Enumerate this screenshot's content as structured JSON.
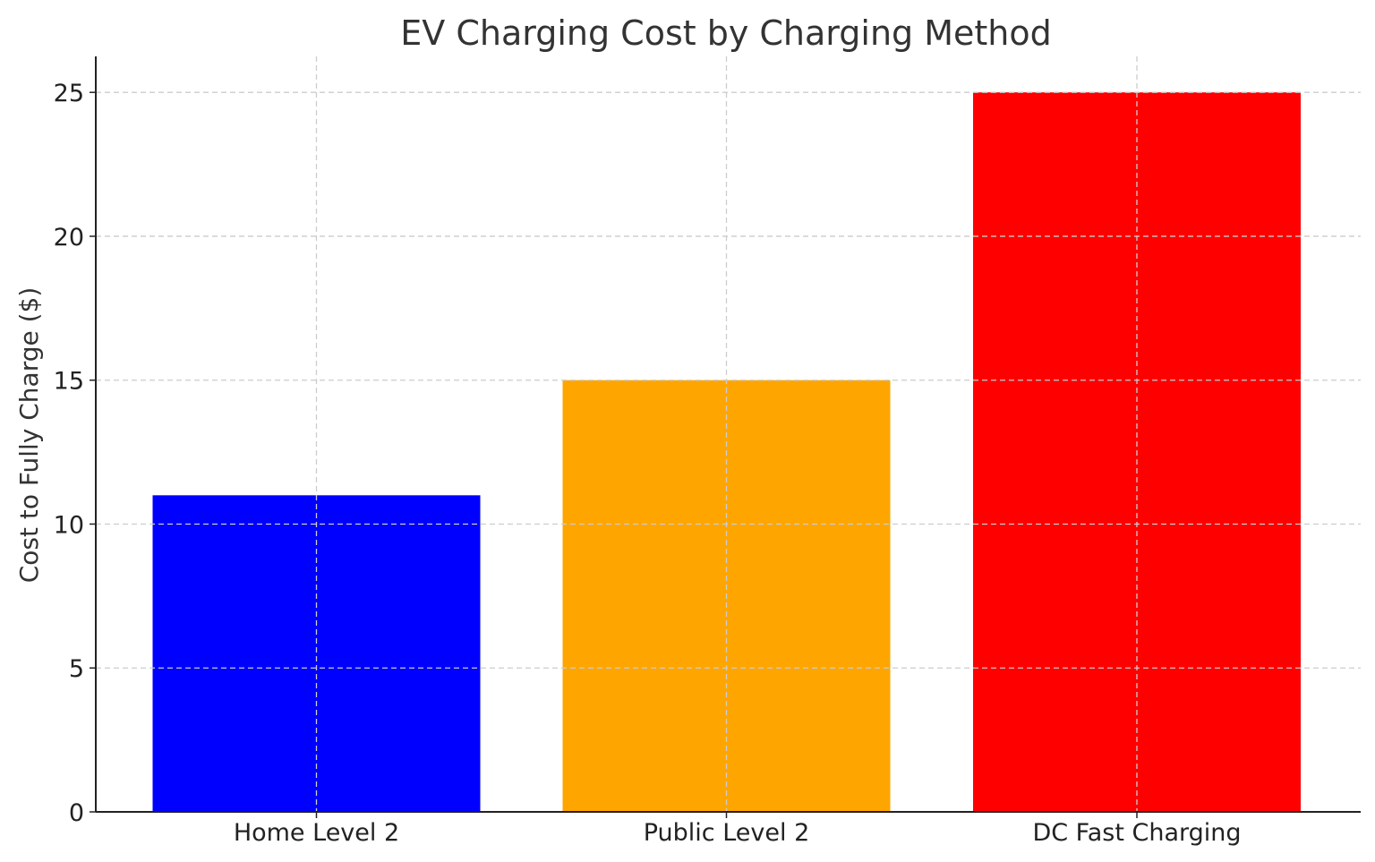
{
  "chart_data": {
    "type": "bar",
    "title": "EV Charging Cost by Charging Method",
    "xlabel": "",
    "ylabel": "Cost to Fully Charge ($)",
    "categories": [
      "Home Level 2",
      "Public Level 2",
      "DC Fast Charging"
    ],
    "values": [
      11,
      15,
      25
    ],
    "colors": [
      "#0000ff",
      "#ffa500",
      "#ff0000"
    ],
    "ylim": [
      0,
      26.25
    ],
    "yticks": [
      0,
      5,
      10,
      15,
      20,
      25
    ],
    "grid": true,
    "grid_style": "dashed"
  }
}
